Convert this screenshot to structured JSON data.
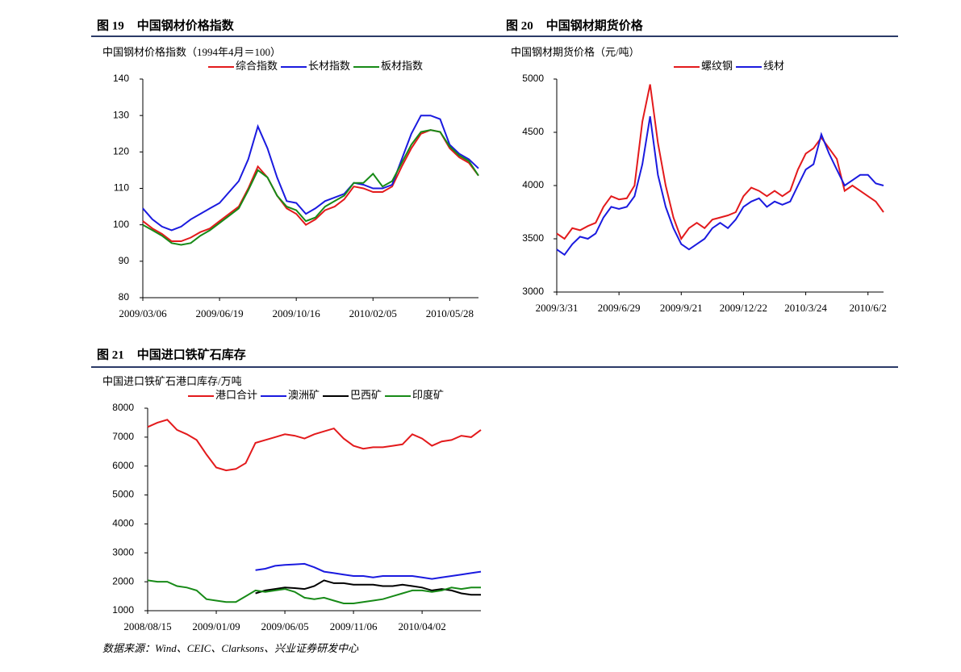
{
  "chart_data": [
    {
      "type": "line",
      "figure_label": "图 19",
      "title": "中国钢材价格指数",
      "subtitle": "中国钢材价格指数（1994年4月＝100）",
      "categories": [
        "2009/03/06",
        null,
        null,
        null,
        null,
        null,
        null,
        null,
        "2009/06/19",
        null,
        null,
        null,
        null,
        null,
        null,
        null,
        "2009/10/16",
        null,
        null,
        null,
        null,
        null,
        null,
        null,
        "2010/02/05",
        null,
        null,
        null,
        null,
        null,
        null,
        null,
        "2010/05/28",
        null,
        null,
        null
      ],
      "series": [
        {
          "name": "综合指数",
          "color": "#e31a1c",
          "values": [
            101,
            99,
            97.5,
            95.5,
            95.5,
            96.5,
            98,
            99,
            101,
            103,
            105,
            110,
            116,
            113,
            108,
            104.5,
            103,
            100,
            101.5,
            104,
            105,
            107,
            110.5,
            110,
            109,
            109,
            110.5,
            116,
            121,
            125,
            126,
            125.5,
            121,
            118.5,
            117,
            113.5
          ]
        },
        {
          "name": "长材指数",
          "color": "#1a1adf",
          "values": [
            104.5,
            101.5,
            99.5,
            98.5,
            99.5,
            101.5,
            103,
            104.5,
            106,
            109,
            112,
            118,
            127,
            121,
            113,
            106.5,
            106,
            103,
            104.5,
            106.5,
            107.5,
            108.5,
            111.5,
            111,
            110,
            110,
            111,
            118,
            125,
            130,
            130,
            129,
            122,
            119.5,
            118,
            115.5
          ]
        },
        {
          "name": "板材指数",
          "color": "#178a17",
          "values": [
            100,
            98.5,
            97,
            95,
            94.5,
            95,
            97,
            98.5,
            100.5,
            102.5,
            104.5,
            109.5,
            115,
            113,
            108,
            105,
            104,
            101,
            102,
            105,
            106.5,
            108,
            111.5,
            111.5,
            114,
            110.5,
            112,
            117,
            122,
            125.5,
            126,
            125.5,
            121.5,
            119,
            117.5,
            113.5
          ]
        }
      ],
      "ylim": [
        80,
        140
      ],
      "yticks": [
        80,
        90,
        100,
        110,
        120,
        130,
        140
      ]
    },
    {
      "type": "line",
      "figure_label": "图 20",
      "title": "中国钢材期货价格",
      "subtitle": "中国钢材期货价格（元/吨）",
      "categories": [
        "2009/3/31",
        null,
        null,
        null,
        null,
        null,
        null,
        null,
        "2009/6/29",
        null,
        null,
        null,
        null,
        null,
        null,
        null,
        "2009/9/21",
        null,
        null,
        null,
        null,
        null,
        null,
        null,
        "2009/12/22",
        null,
        null,
        null,
        null,
        null,
        null,
        null,
        "2010/3/24",
        null,
        null,
        null,
        null,
        null,
        null,
        null,
        "2010/6/2",
        null,
        null
      ],
      "series": [
        {
          "name": "螺纹钢",
          "color": "#e31a1c",
          "values": [
            3550,
            3500,
            3600,
            3580,
            3620,
            3650,
            3800,
            3900,
            3870,
            3880,
            4000,
            4600,
            4950,
            4400,
            4000,
            3700,
            3500,
            3600,
            3650,
            3600,
            3680,
            3700,
            3720,
            3750,
            3900,
            3980,
            3950,
            3900,
            3950,
            3900,
            3950,
            4150,
            4300,
            4350,
            4450,
            4350,
            4250,
            3950,
            4000,
            3950,
            3900,
            3850,
            3750
          ]
        },
        {
          "name": "线材",
          "color": "#1a1adf",
          "values": [
            3400,
            3350,
            3450,
            3520,
            3500,
            3550,
            3700,
            3800,
            3780,
            3800,
            3900,
            4200,
            4650,
            4100,
            3800,
            3600,
            3450,
            3400,
            3450,
            3500,
            3600,
            3650,
            3600,
            3680,
            3800,
            3850,
            3880,
            3800,
            3850,
            3820,
            3850,
            4000,
            4150,
            4200,
            4480,
            4300,
            4150,
            4000,
            4050,
            4100,
            4100,
            4020,
            4000
          ]
        }
      ],
      "ylim": [
        3000,
        5000
      ],
      "yticks": [
        3000,
        3500,
        4000,
        4500,
        5000
      ]
    },
    {
      "type": "line",
      "figure_label": "图 21",
      "title": "中国进口铁矿石库存",
      "subtitle": "中国进口铁矿石港口库存/万吨",
      "categories": [
        "2008/08/15",
        null,
        null,
        null,
        null,
        null,
        null,
        "2009/01/09",
        null,
        null,
        null,
        null,
        null,
        null,
        "2009/06/05",
        null,
        null,
        null,
        null,
        null,
        null,
        "2009/11/06",
        null,
        null,
        null,
        null,
        null,
        null,
        "2010/04/02",
        null,
        null,
        null,
        null,
        null,
        null
      ],
      "series": [
        {
          "name": "港口合计",
          "color": "#e31a1c",
          "values": [
            7350,
            7500,
            7600,
            7250,
            7100,
            6900,
            6400,
            5950,
            5850,
            5900,
            6100,
            6800,
            6900,
            7000,
            7100,
            7050,
            6950,
            7100,
            7200,
            7300,
            6950,
            6700,
            6600,
            6650,
            6650,
            6700,
            6750,
            7100,
            6950,
            6700,
            6850,
            6900,
            7050,
            7000,
            7250
          ]
        },
        {
          "name": "澳洲矿",
          "color": "#1a1adf",
          "values": [
            null,
            null,
            null,
            null,
            null,
            null,
            null,
            null,
            null,
            null,
            null,
            2400,
            2450,
            2550,
            2580,
            2600,
            2620,
            2500,
            2350,
            2300,
            2250,
            2200,
            2200,
            2150,
            2200,
            2200,
            2200,
            2200,
            2150,
            2100,
            2150,
            2200,
            2250,
            2300,
            2350
          ]
        },
        {
          "name": "巴西矿",
          "color": "#000000",
          "values": [
            null,
            null,
            null,
            null,
            null,
            null,
            null,
            null,
            null,
            null,
            null,
            1600,
            1700,
            1750,
            1800,
            1780,
            1750,
            1850,
            2050,
            1950,
            1950,
            1900,
            1900,
            1900,
            1850,
            1850,
            1900,
            1850,
            1800,
            1700,
            1750,
            1700,
            1600,
            1550,
            1550
          ]
        },
        {
          "name": "印度矿",
          "color": "#178a17",
          "values": [
            2050,
            2000,
            2000,
            1850,
            1800,
            1700,
            1400,
            1350,
            1300,
            1300,
            1500,
            1700,
            1650,
            1700,
            1750,
            1650,
            1450,
            1400,
            1450,
            1350,
            1250,
            1250,
            1300,
            1350,
            1400,
            1500,
            1600,
            1700,
            1700,
            1650,
            1700,
            1800,
            1750,
            1800,
            1800
          ]
        }
      ],
      "ylim": [
        1000,
        8000
      ],
      "yticks": [
        1000,
        2000,
        3000,
        4000,
        5000,
        6000,
        7000,
        8000
      ]
    }
  ],
  "source": "数据来源：Wind、CEIC、Clarksons、兴业证券研发中心"
}
